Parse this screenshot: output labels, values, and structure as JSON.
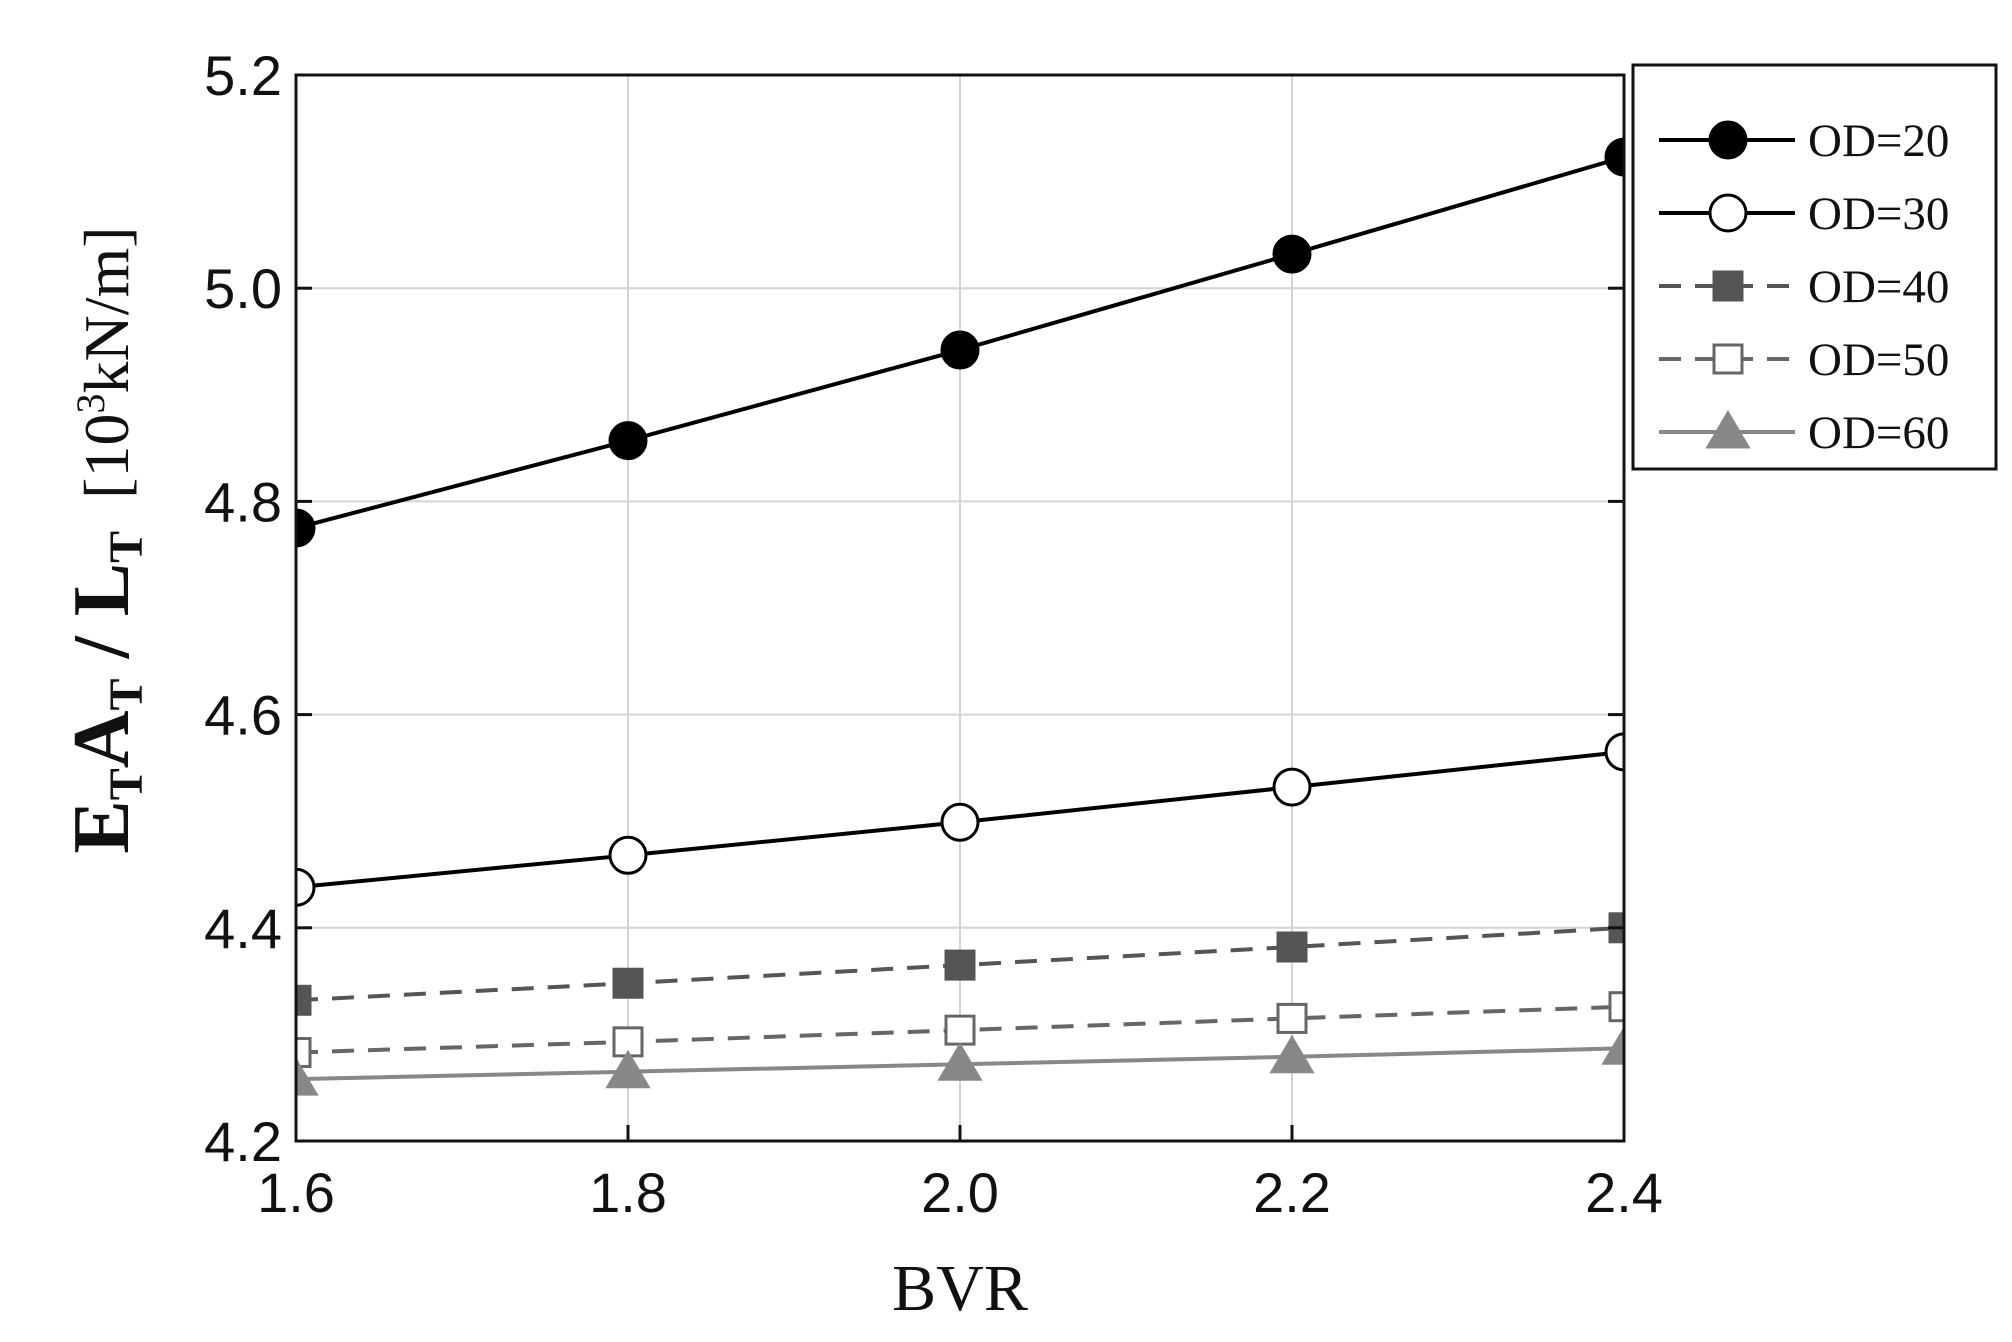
{
  "chart_data": {
    "type": "line",
    "x_label": "BVR",
    "y_label_parts": [
      "E",
      "T",
      "A",
      "T",
      " / L",
      "T",
      "  [10",
      "3",
      "kN/m]"
    ],
    "x": [
      1.6,
      1.8,
      2.0,
      2.2,
      2.4
    ],
    "xlim": [
      1.6,
      2.4
    ],
    "ylim": [
      4.2,
      5.2
    ],
    "xticks": [
      1.6,
      1.8,
      {
        "value": 2.0,
        "label": "2.0"
      },
      2.2,
      2.4
    ],
    "yticks": [
      4.2,
      4.4,
      4.6,
      4.8,
      {
        "value": 5.0,
        "label": "5.0"
      },
      5.2
    ],
    "grid": true,
    "legend": "outside-upper-right",
    "series": [
      {
        "name": "OD=20",
        "color": "#000000",
        "marker": "circle",
        "filled": true,
        "dashed": false,
        "values": [
          4.775,
          4.857,
          4.942,
          5.032,
          5.123
        ]
      },
      {
        "name": "OD=30",
        "color": "#000000",
        "marker": "circle",
        "filled": false,
        "dashed": false,
        "values": [
          4.438,
          4.468,
          4.499,
          4.532,
          4.565
        ]
      },
      {
        "name": "OD=40",
        "color": "#555555",
        "marker": "square",
        "filled": true,
        "dashed": true,
        "values": [
          4.332,
          4.348,
          4.365,
          4.382,
          4.4
        ]
      },
      {
        "name": "OD=50",
        "color": "#666666",
        "marker": "square",
        "filled": false,
        "dashed": true,
        "values": [
          4.283,
          4.293,
          4.304,
          4.315,
          4.326
        ]
      },
      {
        "name": "OD=60",
        "color": "#888888",
        "marker": "triangle",
        "filled": true,
        "dashed": false,
        "values": [
          4.258,
          4.265,
          4.272,
          4.279,
          4.287
        ]
      }
    ]
  }
}
